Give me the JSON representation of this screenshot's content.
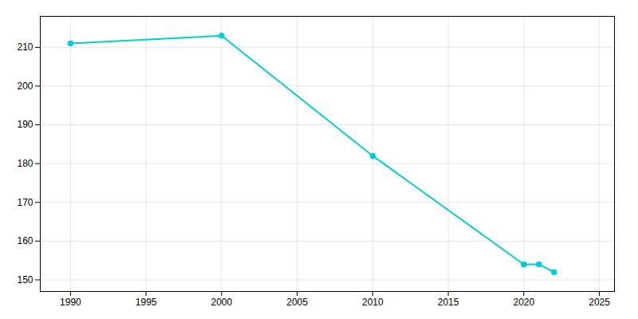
{
  "chart_data": {
    "type": "line",
    "x": [
      1990,
      2000,
      2010,
      2020,
      2021,
      2022
    ],
    "values": [
      211,
      213,
      182,
      154,
      154,
      152
    ],
    "color": "#00CED1",
    "marker": "circle",
    "xlim": [
      1988,
      2026
    ],
    "ylim": [
      147,
      218
    ],
    "xticks": [
      1990,
      1995,
      2000,
      2005,
      2010,
      2015,
      2020,
      2025
    ],
    "yticks": [
      150,
      160,
      170,
      180,
      190,
      200,
      210
    ],
    "grid": true
  }
}
